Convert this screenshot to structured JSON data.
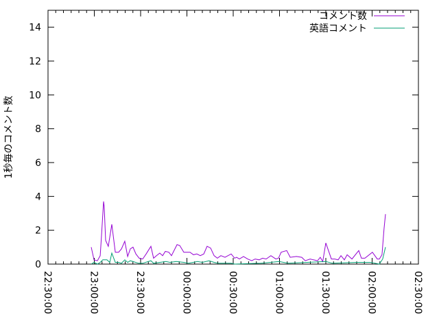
{
  "chart_data": {
    "type": "line",
    "title": "",
    "xlabel": "",
    "ylabel": "1秒毎のコメント数",
    "xlim": [
      "22:30:00",
      "02:30:00"
    ],
    "ylim": [
      0,
      15
    ],
    "x_ticks": [
      "22:30:00",
      "23:00:00",
      "23:30:00",
      "00:00:00",
      "00:30:00",
      "01:00:00",
      "01:30:00",
      "02:00:00",
      "02:30:00"
    ],
    "y_ticks": [
      "0",
      "2",
      "4",
      "6",
      "8",
      "10",
      "12",
      "14"
    ],
    "grid": false,
    "legend_position": "top-right",
    "series": [
      {
        "name": "コメント数",
        "color": "#9400d3",
        "points": [
          [
            "22:58:00",
            1.0
          ],
          [
            "22:59:50",
            0.25
          ],
          [
            "23:02:00",
            0.2
          ],
          [
            "23:03:50",
            0.5
          ],
          [
            "23:04:40",
            1.7
          ],
          [
            "23:06:00",
            3.7
          ],
          [
            "23:06:25",
            3.4
          ],
          [
            "23:07:20",
            1.4
          ],
          [
            "23:09:05",
            1.05
          ],
          [
            "23:11:20",
            2.35
          ],
          [
            "23:13:35",
            0.7
          ],
          [
            "23:15:45",
            0.7
          ],
          [
            "23:17:35",
            0.9
          ],
          [
            "23:19:45",
            1.35
          ],
          [
            "23:21:35",
            0.45
          ],
          [
            "23:23:20",
            0.9
          ],
          [
            "23:25:05",
            1.0
          ],
          [
            "23:26:55",
            0.6
          ],
          [
            "23:29:05",
            0.35
          ],
          [
            "23:31:20",
            0.3
          ],
          [
            "23:33:35",
            0.6
          ],
          [
            "23:36:40",
            1.05
          ],
          [
            "23:38:25",
            0.35
          ],
          [
            "23:40:15",
            0.5
          ],
          [
            "23:42:25",
            0.65
          ],
          [
            "23:44:15",
            0.5
          ],
          [
            "23:46:00",
            0.75
          ],
          [
            "23:48:15",
            0.7
          ],
          [
            "23:50:00",
            0.5
          ],
          [
            "23:53:35",
            1.15
          ],
          [
            "23:55:20",
            1.1
          ],
          [
            "23:58:00",
            0.7
          ],
          [
            "00:02:00",
            0.7
          ],
          [
            "00:04:15",
            0.55
          ],
          [
            "00:06:25",
            0.6
          ],
          [
            "00:08:40",
            0.5
          ],
          [
            "00:10:55",
            0.6
          ],
          [
            "00:13:05",
            1.05
          ],
          [
            "00:15:20",
            0.95
          ],
          [
            "00:17:35",
            0.5
          ],
          [
            "00:19:45",
            0.35
          ],
          [
            "00:22:00",
            0.5
          ],
          [
            "00:24:40",
            0.4
          ],
          [
            "00:28:40",
            0.6
          ],
          [
            "00:30:55",
            0.35
          ],
          [
            "00:32:10",
            0.4
          ],
          [
            "00:34:00",
            0.3
          ],
          [
            "00:36:40",
            0.45
          ],
          [
            "00:39:20",
            0.3
          ],
          [
            "00:42:00",
            0.2
          ],
          [
            "00:44:10",
            0.3
          ],
          [
            "00:46:50",
            0.25
          ],
          [
            "00:49:05",
            0.35
          ],
          [
            "00:51:20",
            0.3
          ],
          [
            "00:54:25",
            0.5
          ],
          [
            "00:57:35",
            0.3
          ],
          [
            "00:59:20",
            0.35
          ],
          [
            "01:01:05",
            0.7
          ],
          [
            "01:04:40",
            0.8
          ],
          [
            "01:06:55",
            0.4
          ],
          [
            "01:10:55",
            0.45
          ],
          [
            "01:14:25",
            0.4
          ],
          [
            "01:16:40",
            0.2
          ],
          [
            "01:19:50",
            0.3
          ],
          [
            "01:22:00",
            0.25
          ],
          [
            "01:24:40",
            0.2
          ],
          [
            "01:26:25",
            0.4
          ],
          [
            "01:28:00",
            0.15
          ],
          [
            "01:30:00",
            1.25
          ],
          [
            "01:33:35",
            0.3
          ],
          [
            "01:35:50",
            0.3
          ],
          [
            "01:38:00",
            0.25
          ],
          [
            "01:39:50",
            0.5
          ],
          [
            "01:42:00",
            0.25
          ],
          [
            "01:43:50",
            0.55
          ],
          [
            "01:46:55",
            0.3
          ],
          [
            "01:51:20",
            0.8
          ],
          [
            "01:53:05",
            0.35
          ],
          [
            "01:55:20",
            0.35
          ],
          [
            "02:00:10",
            0.7
          ],
          [
            "02:03:20",
            0.3
          ],
          [
            "02:04:40",
            0.3
          ],
          [
            "02:06:25",
            0.55
          ],
          [
            "02:07:45",
            2.1
          ],
          [
            "02:08:40",
            2.95
          ]
        ]
      },
      {
        "name": "英語コメント",
        "color": "#009e73",
        "points": [
          [
            "22:58:00",
            0
          ],
          [
            "22:59:50",
            0.1
          ],
          [
            "23:02:00",
            0
          ],
          [
            "23:03:50",
            0.1
          ],
          [
            "23:05:30",
            0.25
          ],
          [
            "23:08:10",
            0.25
          ],
          [
            "23:10:00",
            0.1
          ],
          [
            "23:11:20",
            0.65
          ],
          [
            "23:13:35",
            0.1
          ],
          [
            "23:15:45",
            0.1
          ],
          [
            "23:17:35",
            0.05
          ],
          [
            "23:19:45",
            0.25
          ],
          [
            "23:21:35",
            0.1
          ],
          [
            "23:23:20",
            0.2
          ],
          [
            "23:28:40",
            0.05
          ],
          [
            "23:31:20",
            0.05
          ],
          [
            "23:36:40",
            0.2
          ],
          [
            "23:38:25",
            0.05
          ],
          [
            "23:46:25",
            0.15
          ],
          [
            "23:49:05",
            0.1
          ],
          [
            "23:53:05",
            0.15
          ],
          [
            "23:58:00",
            0.1
          ],
          [
            "00:01:05",
            0.05
          ],
          [
            "00:06:50",
            0.15
          ],
          [
            "00:10:00",
            0.1
          ],
          [
            "00:14:25",
            0.2
          ],
          [
            "00:17:35",
            0.1
          ],
          [
            "00:20:15",
            0.05
          ],
          [
            "00:24:40",
            0.05
          ],
          [
            "00:28:40",
            0.05
          ],
          [
            "00:30:55",
            0
          ],
          [
            "00:47:45",
            0.05
          ],
          [
            "00:59:45",
            0.15
          ],
          [
            "01:05:35",
            0.05
          ],
          [
            "01:30:00",
            0.15
          ],
          [
            "01:34:25",
            0.05
          ],
          [
            "01:50:00",
            0.1
          ],
          [
            "01:55:45",
            0.1
          ],
          [
            "01:58:55",
            0.1
          ],
          [
            "02:04:40",
            0
          ],
          [
            "02:06:50",
            0.3
          ],
          [
            "02:08:40",
            1.0
          ]
        ]
      }
    ]
  }
}
